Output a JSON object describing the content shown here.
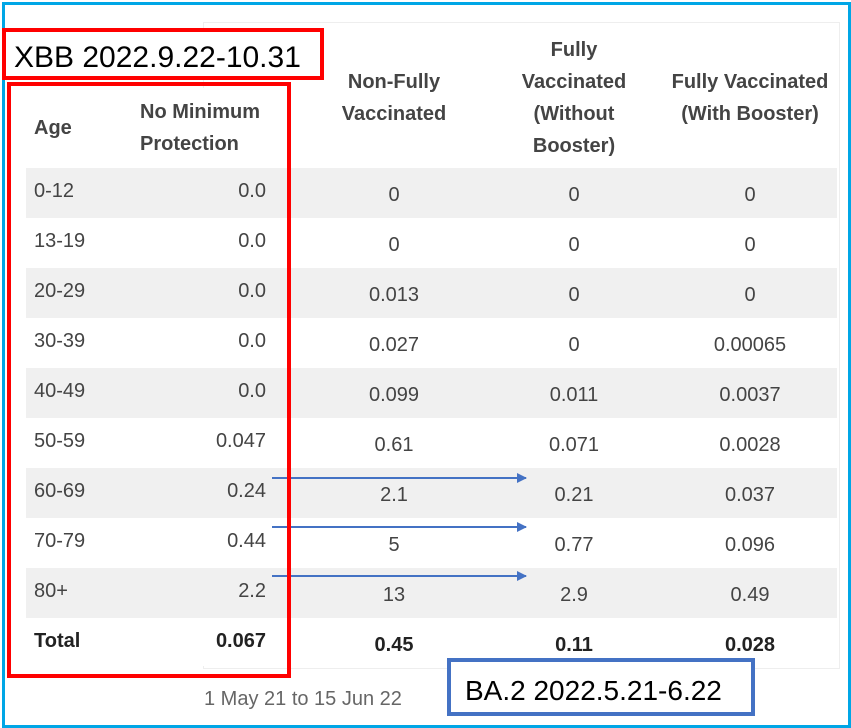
{
  "xbb_label": "XBB 2022.9.22-10.31",
  "ba2_label": "BA.2 2022.5.21-6.22",
  "footnote": "1 May 21 to 15 Jun 22",
  "left_table": {
    "headers": {
      "age": "Age",
      "protection_line1": "No Minimum",
      "protection_line2": "Protection"
    },
    "rows": [
      {
        "age": "0-12",
        "value": "0.0"
      },
      {
        "age": "13-19",
        "value": "0.0"
      },
      {
        "age": "20-29",
        "value": "0.0"
      },
      {
        "age": "30-39",
        "value": "0.0"
      },
      {
        "age": "40-49",
        "value": "0.0"
      },
      {
        "age": "50-59",
        "value": "0.047"
      },
      {
        "age": "60-69",
        "value": "0.24"
      },
      {
        "age": "70-79",
        "value": "0.44"
      },
      {
        "age": "80+",
        "value": "2.2"
      }
    ],
    "total": {
      "age": "Total",
      "value": "0.067"
    }
  },
  "right_table": {
    "headers": {
      "non_fully": [
        "Non-Fully",
        "Vaccinated"
      ],
      "without_booster": [
        "Fully",
        "Vaccinated",
        "(Without",
        "Booster)"
      ],
      "with_booster": [
        "Fully Vaccinated",
        "(With Booster)"
      ]
    },
    "rows": [
      {
        "non_fully": "0",
        "without_booster": "0",
        "with_booster": "0"
      },
      {
        "non_fully": "0",
        "without_booster": "0",
        "with_booster": "0"
      },
      {
        "non_fully": "0.013",
        "without_booster": "0",
        "with_booster": "0"
      },
      {
        "non_fully": "0.027",
        "without_booster": "0",
        "with_booster": "0.00065"
      },
      {
        "non_fully": "0.099",
        "without_booster": "0.011",
        "with_booster": "0.0037"
      },
      {
        "non_fully": "0.61",
        "without_booster": "0.071",
        "with_booster": "0.0028"
      },
      {
        "non_fully": "2.1",
        "without_booster": "0.21",
        "with_booster": "0.037"
      },
      {
        "non_fully": "5",
        "without_booster": "0.77",
        "with_booster": "0.096"
      },
      {
        "non_fully": "13",
        "without_booster": "2.9",
        "with_booster": "0.49"
      }
    ],
    "total": {
      "non_fully": "0.45",
      "without_booster": "0.11",
      "with_booster": "0.028"
    }
  },
  "colors": {
    "frame": "#00a6e6",
    "xbb_box": "#ff0000",
    "ba2_box": "#4472c4",
    "arrow": "#4472c4",
    "stripe": "#f0f0f0"
  }
}
